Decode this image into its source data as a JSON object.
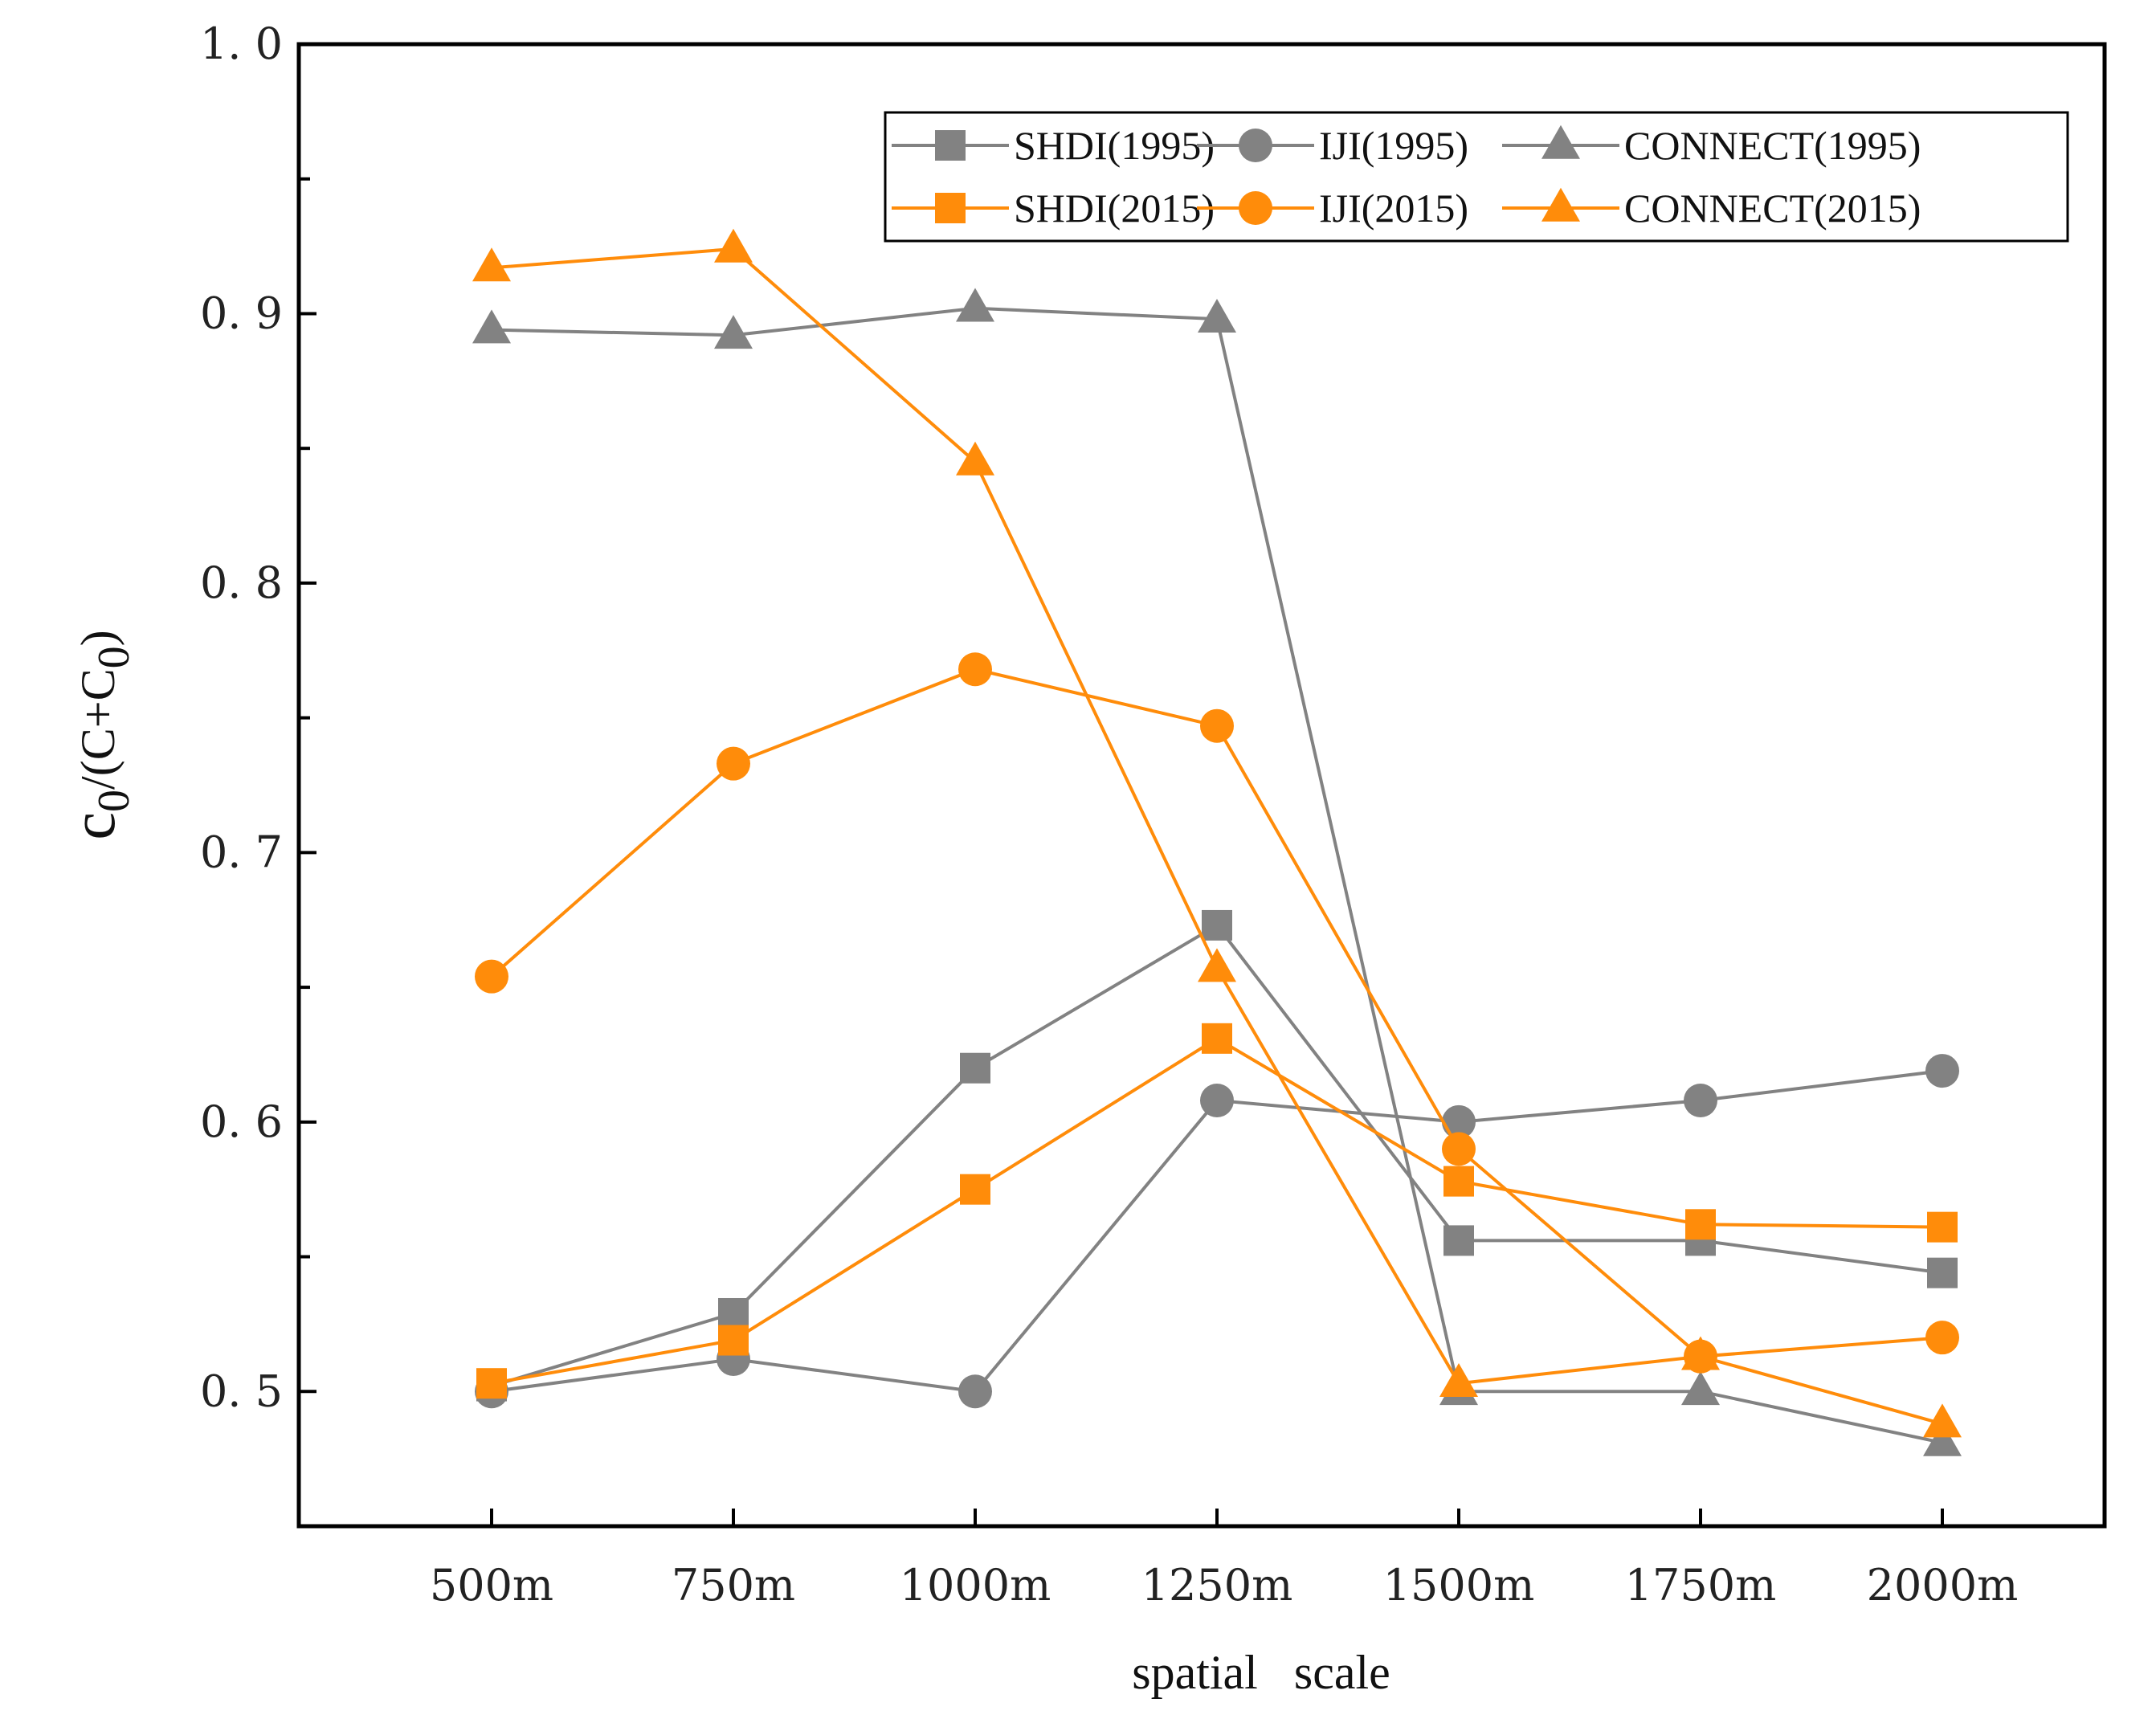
{
  "chart_data": {
    "type": "line",
    "title": "",
    "xlabel": "spatial   scale",
    "ylabel": {
      "c_letter": "c",
      "sub1": "0",
      "mid": "/(C+C",
      "sub2": "0",
      "end": ")"
    },
    "categories": [
      "500m",
      "750m",
      "1000m",
      "1250m",
      "1500m",
      "1750m",
      "2000m"
    ],
    "ylim": [
      0.45,
      1.0
    ],
    "yticks": [
      0.5,
      0.6,
      0.7,
      0.8,
      0.9,
      1.0
    ],
    "ytick_labels": [
      "0. 5",
      "0. 6",
      "0. 7",
      "0. 8",
      "0. 9",
      "1. 0"
    ],
    "legend_position": "top-right",
    "colors": {
      "gray": "#828282",
      "orange": "#ff8c0a"
    },
    "series": [
      {
        "name": "SHDI(1995)",
        "marker": "square",
        "color": "#828282",
        "values": [
          0.502,
          0.529,
          0.62,
          0.673,
          0.556,
          0.556,
          0.544
        ]
      },
      {
        "name": "IJI(1995)",
        "marker": "circle",
        "color": "#828282",
        "values": [
          0.5,
          0.512,
          0.5,
          0.608,
          0.6,
          0.608,
          0.619
        ]
      },
      {
        "name": "CONNECT(1995)",
        "marker": "triangle",
        "color": "#828282",
        "values": [
          0.894,
          0.892,
          0.902,
          0.898,
          0.5,
          0.5,
          0.481
        ]
      },
      {
        "name": "SHDI(2015)",
        "marker": "square",
        "color": "#ff8c0a",
        "values": [
          0.503,
          0.519,
          0.575,
          0.631,
          0.578,
          0.562,
          0.561
        ]
      },
      {
        "name": "IJI(2015)",
        "marker": "circle",
        "color": "#ff8c0a",
        "values": [
          0.654,
          0.733,
          0.768,
          0.747,
          0.59,
          0.513,
          0.52
        ]
      },
      {
        "name": "CONNECT(2015)",
        "marker": "triangle",
        "color": "#ff8c0a",
        "values": [
          0.917,
          0.924,
          0.845,
          0.657,
          0.503,
          0.513,
          0.488
        ]
      }
    ]
  }
}
